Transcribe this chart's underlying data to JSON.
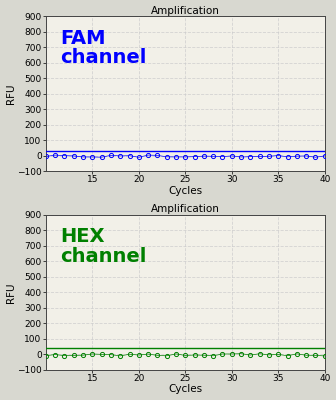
{
  "title": "Amplification",
  "xlabel": "Cycles",
  "ylabel": "RFU",
  "xlim": [
    10,
    40
  ],
  "ylim": [
    -100,
    900
  ],
  "yticks": [
    -100,
    0,
    100,
    200,
    300,
    400,
    500,
    600,
    700,
    800,
    900
  ],
  "xticks": [
    15,
    20,
    25,
    30,
    35,
    40
  ],
  "cycles_start": 10,
  "cycles_end": 40,
  "fam_label": "FAM\nchannel",
  "fam_color": "#0000FF",
  "fam_line_y": 30,
  "hex_label": "HEX\nchannel",
  "hex_color": "#008000",
  "hex_line_y": 40,
  "bg_color": "#f2f0e8",
  "grid_color": "#cccccc",
  "panel_label_fontsize": 14,
  "axis_label_fontsize": 7.5,
  "tick_fontsize": 6.5,
  "title_fontsize": 7.5
}
